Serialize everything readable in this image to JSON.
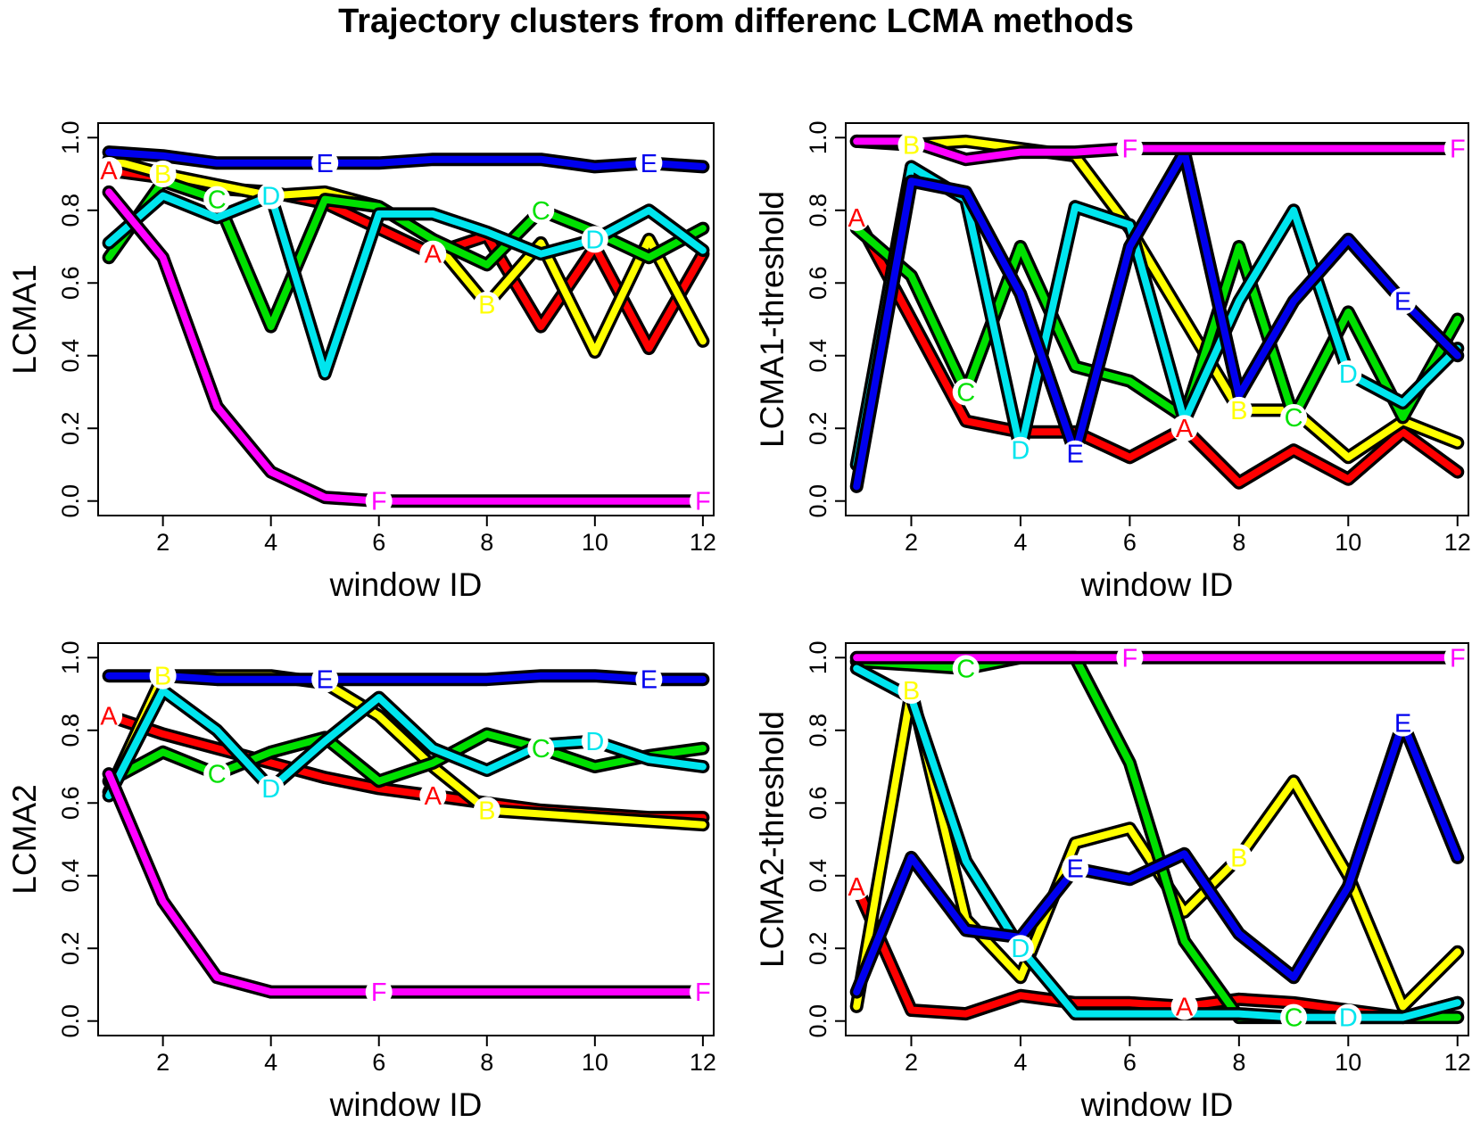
{
  "title": "Trajectory clusters from differenc LCMA methods",
  "colors": {
    "A": "#ff0000",
    "B": "#ffff00",
    "C": "#00e000",
    "D": "#00e5ee",
    "E": "#0000ee",
    "F": "#ff00ff"
  },
  "chart_data": [
    {
      "type": "line",
      "xlabel": "window ID",
      "ylabel": "LCMA1",
      "x": [
        1,
        2,
        3,
        4,
        5,
        6,
        7,
        8,
        9,
        10,
        11,
        12
      ],
      "xlim": [
        0.8,
        12.2
      ],
      "ylim": [
        -0.04,
        1.04
      ],
      "xticks": [
        2,
        4,
        6,
        8,
        10,
        12
      ],
      "yticks": [
        0.0,
        0.2,
        0.4,
        0.6,
        0.8,
        1.0
      ],
      "xtick_labels": [
        "2",
        "4",
        "6",
        "8",
        "10",
        "12"
      ],
      "ytick_labels": [
        "0.0",
        "0.2",
        "0.4",
        "0.6",
        "0.8",
        "1.0"
      ],
      "series": [
        {
          "name": "A",
          "values": [
            0.91,
            0.89,
            0.86,
            0.85,
            0.82,
            0.75,
            0.68,
            0.73,
            0.48,
            0.7,
            0.42,
            0.68
          ],
          "labels_at": [
            1,
            7
          ]
        },
        {
          "name": "B",
          "values": [
            0.94,
            0.9,
            0.87,
            0.84,
            0.85,
            0.81,
            0.72,
            0.54,
            0.71,
            0.41,
            0.72,
            0.44
          ],
          "labels_at": [
            2,
            8
          ]
        },
        {
          "name": "C",
          "values": [
            0.67,
            0.88,
            0.83,
            0.48,
            0.83,
            0.81,
            0.72,
            0.65,
            0.8,
            0.74,
            0.67,
            0.75
          ],
          "labels_at": [
            3,
            9
          ]
        },
        {
          "name": "D",
          "values": [
            0.71,
            0.84,
            0.78,
            0.84,
            0.35,
            0.79,
            0.79,
            0.74,
            0.68,
            0.72,
            0.8,
            0.69
          ],
          "labels_at": [
            4,
            10
          ]
        },
        {
          "name": "E",
          "values": [
            0.96,
            0.95,
            0.93,
            0.93,
            0.93,
            0.93,
            0.94,
            0.94,
            0.94,
            0.92,
            0.93,
            0.92
          ],
          "labels_at": [
            5,
            11
          ]
        },
        {
          "name": "F",
          "values": [
            0.85,
            0.67,
            0.26,
            0.08,
            0.01,
            0.0,
            0.0,
            0.0,
            0.0,
            0.0,
            0.0,
            0.0
          ],
          "labels_at": [
            6,
            12
          ]
        }
      ]
    },
    {
      "type": "line",
      "xlabel": "window ID",
      "ylabel": "LCMA1-threshold",
      "x": [
        1,
        2,
        3,
        4,
        5,
        6,
        7,
        8,
        9,
        10,
        11,
        12
      ],
      "xlim": [
        0.8,
        12.2
      ],
      "ylim": [
        -0.04,
        1.04
      ],
      "xticks": [
        2,
        4,
        6,
        8,
        10,
        12
      ],
      "yticks": [
        0.0,
        0.2,
        0.4,
        0.6,
        0.8,
        1.0
      ],
      "xtick_labels": [
        "2",
        "4",
        "6",
        "8",
        "10",
        "12"
      ],
      "ytick_labels": [
        "0.0",
        "0.2",
        "0.4",
        "0.6",
        "0.8",
        "1.0"
      ],
      "series": [
        {
          "name": "A",
          "values": [
            0.78,
            0.5,
            0.22,
            0.19,
            0.19,
            0.12,
            0.2,
            0.05,
            0.14,
            0.06,
            0.19,
            0.08
          ],
          "labels_at": [
            1,
            7
          ]
        },
        {
          "name": "B",
          "values": [
            0.99,
            0.98,
            0.99,
            0.97,
            0.95,
            0.75,
            0.5,
            0.25,
            0.25,
            0.12,
            0.22,
            0.16
          ],
          "labels_at": [
            2,
            8
          ]
        },
        {
          "name": "C",
          "values": [
            0.75,
            0.62,
            0.3,
            0.7,
            0.37,
            0.33,
            0.23,
            0.7,
            0.23,
            0.52,
            0.23,
            0.5
          ],
          "labels_at": [
            3,
            9
          ]
        },
        {
          "name": "D",
          "values": [
            0.1,
            0.92,
            0.83,
            0.14,
            0.81,
            0.76,
            0.22,
            0.55,
            0.8,
            0.35,
            0.27,
            0.42
          ],
          "labels_at": [
            4,
            10
          ]
        },
        {
          "name": "E",
          "values": [
            0.04,
            0.88,
            0.85,
            0.57,
            0.13,
            0.7,
            0.96,
            0.29,
            0.55,
            0.72,
            0.55,
            0.4
          ],
          "labels_at": [
            5,
            11
          ]
        },
        {
          "name": "F",
          "values": [
            0.99,
            0.99,
            0.94,
            0.96,
            0.96,
            0.97,
            0.97,
            0.97,
            0.97,
            0.97,
            0.97,
            0.97
          ],
          "labels_at": [
            6,
            12
          ]
        }
      ]
    },
    {
      "type": "line",
      "xlabel": "window ID",
      "ylabel": "LCMA2",
      "x": [
        1,
        2,
        3,
        4,
        5,
        6,
        7,
        8,
        9,
        10,
        11,
        12
      ],
      "xlim": [
        0.8,
        12.2
      ],
      "ylim": [
        -0.04,
        1.04
      ],
      "xticks": [
        2,
        4,
        6,
        8,
        10,
        12
      ],
      "yticks": [
        0.0,
        0.2,
        0.4,
        0.6,
        0.8,
        1.0
      ],
      "xtick_labels": [
        "2",
        "4",
        "6",
        "8",
        "10",
        "12"
      ],
      "ytick_labels": [
        "0.0",
        "0.2",
        "0.4",
        "0.6",
        "0.8",
        "1.0"
      ],
      "series": [
        {
          "name": "A",
          "values": [
            0.84,
            0.79,
            0.75,
            0.71,
            0.67,
            0.64,
            0.62,
            0.6,
            0.58,
            0.57,
            0.56,
            0.56
          ],
          "labels_at": [
            1,
            7
          ]
        },
        {
          "name": "B",
          "values": [
            0.63,
            0.95,
            0.95,
            0.95,
            0.93,
            0.84,
            0.7,
            0.58,
            0.57,
            0.56,
            0.55,
            0.54
          ],
          "labels_at": [
            2,
            8
          ]
        },
        {
          "name": "C",
          "values": [
            0.66,
            0.74,
            0.68,
            0.74,
            0.78,
            0.66,
            0.71,
            0.79,
            0.75,
            0.7,
            0.73,
            0.75
          ],
          "labels_at": [
            3,
            9
          ]
        },
        {
          "name": "D",
          "values": [
            0.62,
            0.91,
            0.8,
            0.64,
            0.77,
            0.89,
            0.75,
            0.69,
            0.76,
            0.77,
            0.72,
            0.7
          ],
          "labels_at": [
            4,
            10
          ]
        },
        {
          "name": "E",
          "values": [
            0.95,
            0.95,
            0.94,
            0.94,
            0.94,
            0.94,
            0.94,
            0.94,
            0.95,
            0.95,
            0.94,
            0.94
          ],
          "labels_at": [
            5,
            11
          ]
        },
        {
          "name": "F",
          "values": [
            0.68,
            0.33,
            0.12,
            0.08,
            0.08,
            0.08,
            0.08,
            0.08,
            0.08,
            0.08,
            0.08,
            0.08
          ],
          "labels_at": [
            6,
            12
          ]
        }
      ]
    },
    {
      "type": "line",
      "xlabel": "window ID",
      "ylabel": "LCMA2-threshold",
      "x": [
        1,
        2,
        3,
        4,
        5,
        6,
        7,
        8,
        9,
        10,
        11,
        12
      ],
      "xlim": [
        0.8,
        12.2
      ],
      "ylim": [
        -0.04,
        1.04
      ],
      "xticks": [
        2,
        4,
        6,
        8,
        10,
        12
      ],
      "yticks": [
        0.0,
        0.2,
        0.4,
        0.6,
        0.8,
        1.0
      ],
      "xtick_labels": [
        "2",
        "4",
        "6",
        "8",
        "10",
        "12"
      ],
      "ytick_labels": [
        "0.0",
        "0.2",
        "0.4",
        "0.6",
        "0.8",
        "1.0"
      ],
      "series": [
        {
          "name": "A",
          "values": [
            0.37,
            0.03,
            0.02,
            0.07,
            0.05,
            0.05,
            0.04,
            0.06,
            0.05,
            0.03,
            0.01,
            0.05
          ],
          "labels_at": [
            1,
            7
          ]
        },
        {
          "name": "B",
          "values": [
            0.04,
            0.91,
            0.28,
            0.12,
            0.49,
            0.53,
            0.3,
            0.45,
            0.66,
            0.4,
            0.04,
            0.19
          ],
          "labels_at": [
            2,
            8
          ]
        },
        {
          "name": "C",
          "values": [
            0.99,
            0.98,
            0.97,
            1.0,
            1.0,
            0.71,
            0.22,
            0.01,
            0.01,
            0.01,
            0.01,
            0.01
          ],
          "labels_at": [
            3,
            9
          ]
        },
        {
          "name": "D",
          "values": [
            0.97,
            0.89,
            0.44,
            0.2,
            0.02,
            0.02,
            0.02,
            0.02,
            0.01,
            0.01,
            0.01,
            0.05
          ],
          "labels_at": [
            4,
            10
          ]
        },
        {
          "name": "E",
          "values": [
            0.08,
            0.45,
            0.25,
            0.23,
            0.42,
            0.39,
            0.46,
            0.24,
            0.12,
            0.37,
            0.82,
            0.45
          ],
          "labels_at": [
            5,
            11
          ]
        },
        {
          "name": "F",
          "values": [
            1.0,
            1.0,
            1.0,
            1.0,
            1.0,
            1.0,
            1.0,
            1.0,
            1.0,
            1.0,
            1.0,
            1.0
          ],
          "labels_at": [
            6,
            12
          ]
        }
      ]
    }
  ]
}
